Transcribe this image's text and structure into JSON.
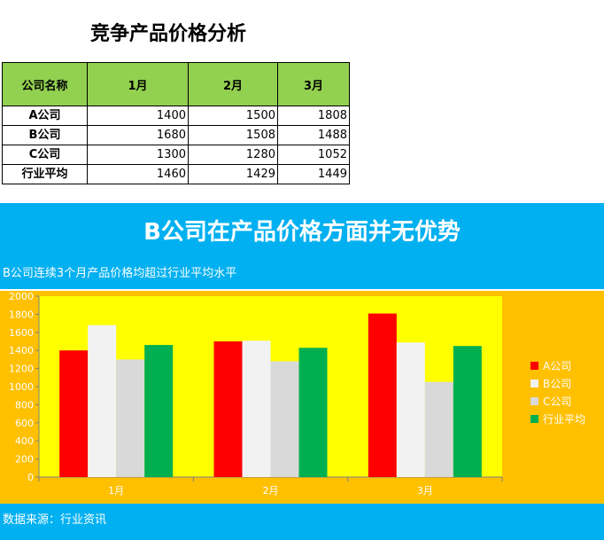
{
  "document": {
    "title": "竞争产品价格分析"
  },
  "table": {
    "header": {
      "company": "公司名称",
      "months": [
        "1月",
        "2月",
        "3月"
      ]
    },
    "rows": [
      {
        "company": "A公司",
        "values": [
          "1400",
          "1500",
          "1808"
        ]
      },
      {
        "company": "B公司",
        "values": [
          "1680",
          "1508",
          "1488"
        ]
      },
      {
        "company": "C公司",
        "values": [
          "1300",
          "1280",
          "1052"
        ]
      },
      {
        "company": "行业平均",
        "values": [
          "1460",
          "1429",
          "1449"
        ]
      }
    ]
  },
  "panel": {
    "headline": "B公司在产品价格方面并无优势",
    "subheadline": "B公司连续3个月产品价格均超过行业平均水平",
    "source": "数据来源：行业资讯"
  },
  "colors": {
    "accent_blue": "#00b0f0",
    "chart_bg": "#ffc000",
    "plot_bg": "#ffff00",
    "header_green": "#92d050"
  },
  "chart_data": {
    "type": "bar",
    "categories": [
      "1月",
      "2月",
      "3月"
    ],
    "series": [
      {
        "name": "A公司",
        "values": [
          1400,
          1500,
          1808
        ],
        "color": "#ff0000"
      },
      {
        "name": "B公司",
        "values": [
          1680,
          1508,
          1488
        ],
        "color": "#f2f2f2"
      },
      {
        "name": "C公司",
        "values": [
          1300,
          1280,
          1052
        ],
        "color": "#d9d9d9"
      },
      {
        "name": "行业平均",
        "values": [
          1460,
          1429,
          1449
        ],
        "color": "#00b050"
      }
    ],
    "ylim": [
      0,
      2000
    ],
    "yticks": [
      "0",
      "200",
      "400",
      "600",
      "800",
      "1000",
      "1200",
      "1400",
      "1600",
      "1800",
      "2000"
    ],
    "legend": "right",
    "grid": false
  }
}
